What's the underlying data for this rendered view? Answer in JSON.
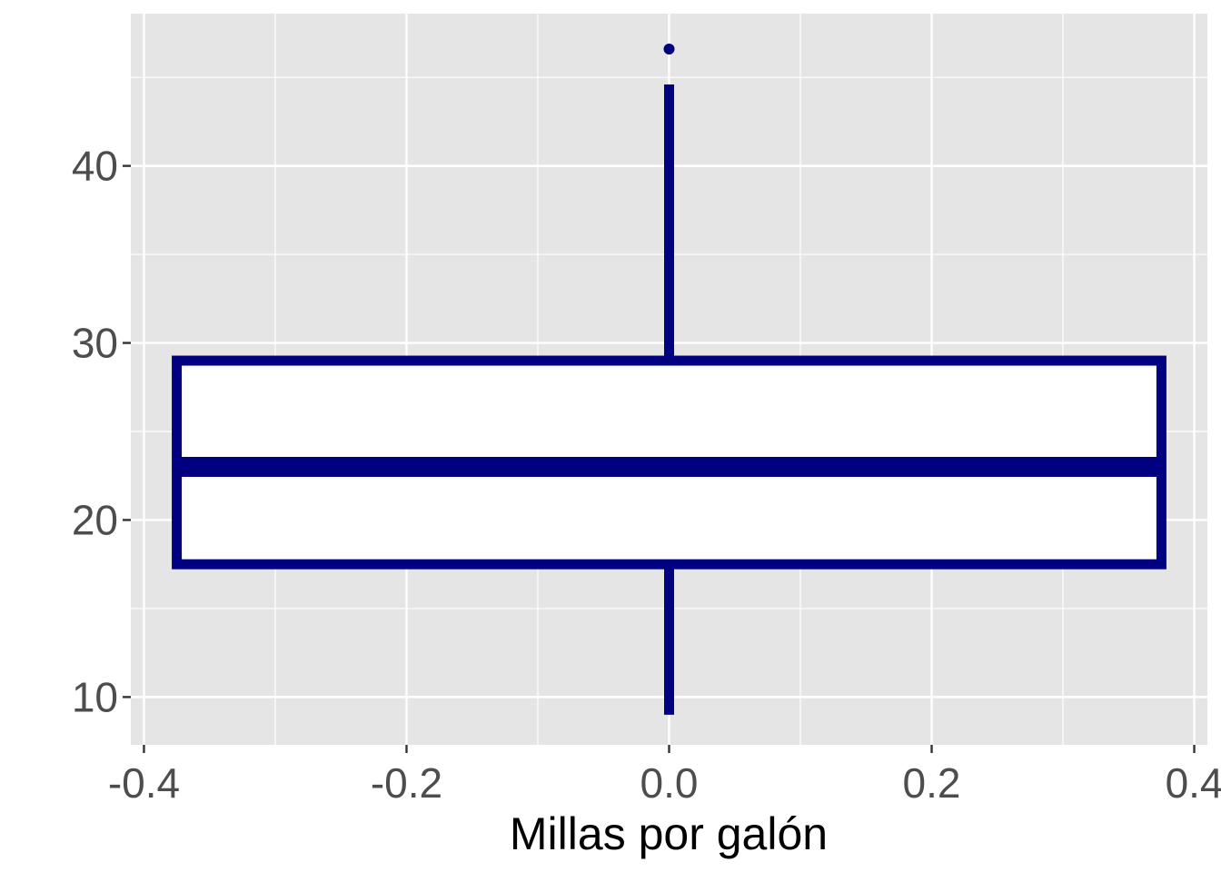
{
  "chart_data": {
    "type": "boxplot",
    "title": "",
    "xlabel": "Millas por galón",
    "ylabel": "",
    "xlim": [
      -0.41,
      0.41
    ],
    "ylim": [
      7.3,
      48.6
    ],
    "x_ticks": [
      -0.4,
      -0.2,
      0.0,
      0.2,
      0.4
    ],
    "x_tick_labels": [
      "-0.4",
      "-0.2",
      "0.0",
      "0.2",
      "0.4"
    ],
    "y_ticks": [
      10,
      20,
      30,
      40
    ],
    "y_tick_labels": [
      "10",
      "20",
      "30",
      "40"
    ],
    "grid": true,
    "legend": "none",
    "box": {
      "x_center": 0.0,
      "x_min": -0.375,
      "x_max": 0.375,
      "whisker_low": 9,
      "q1": 17.5,
      "median": 23,
      "q3": 29,
      "whisker_high": 44.6,
      "outliers": [
        46.6
      ]
    },
    "colors": {
      "panel_background": "#e5e5e5",
      "grid": "#ffffff",
      "box_stroke": "#000080",
      "box_fill": "#ffffff",
      "tick_text": "#4d4d4d",
      "axis_title": "#000000"
    }
  }
}
